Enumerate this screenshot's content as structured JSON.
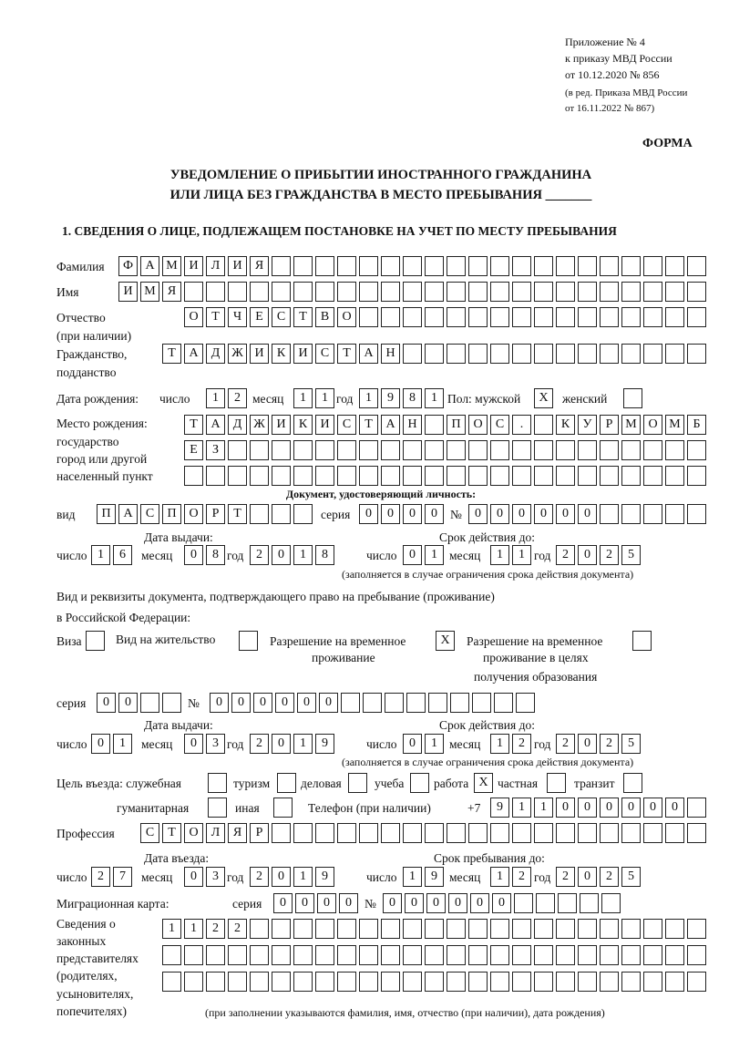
{
  "header": {
    "appendix": "Приложение № 4",
    "order": "к приказу МВД России",
    "order_date": "от 10.12.2020 № 856",
    "edition1": "(в ред. Приказа МВД России",
    "edition2": "от 16.11.2022 № 867)",
    "form_label": "ФОРМА",
    "title1": "УВЕДОМЛЕНИЕ О ПРИБЫТИИ ИНОСТРАННОГО ГРАЖДАНИНА",
    "title2": "ИЛИ ЛИЦА БЕЗ ГРАЖДАНСТВА В МЕСТО ПРЕБЫВАНИЯ _______",
    "section1": "1. СВЕДЕНИЯ О ЛИЦЕ, ПОДЛЕЖАЩЕМ ПОСТАНОВКЕ НА УЧЕТ ПО МЕСТУ ПРЕБЫВАНИЯ"
  },
  "labels": {
    "surname": "Фамилия",
    "name": "Имя",
    "patronymic1": "Отчество",
    "patronymic2": "(при наличии)",
    "citizenship1": "Гражданство,",
    "citizenship2": "подданство",
    "birth_date": "Дата рождения:",
    "day": "число",
    "month": "месяц",
    "year": "год",
    "sex": "Пол: мужской",
    "female": "женский",
    "birthplace1": "Место рождения:",
    "birthplace2": "государство",
    "birthplace3": "город или другой",
    "birthplace4": "населенный пункт",
    "id_doc": "Документ, удостоверяющий личность:",
    "kind": "вид",
    "series": "серия",
    "number": "№",
    "issue_date": "Дата выдачи:",
    "valid_until": "Срок действия до:",
    "validity_note": "(заполняется в случае ограничения срока действия документа)",
    "right_doc1": "Вид и реквизиты документа, подтверждающего право на пребывание (проживание)",
    "right_doc2": "в Российской Федерации:",
    "visa": "Виза",
    "residence": "Вид на жительство",
    "trp1": "Разрешение на временное",
    "trp2": "проживание",
    "trp_edu1": "Разрешение на временное",
    "trp_edu2": "проживание в целях",
    "trp_edu3": "получения образования",
    "purpose": "Цель въезда: служебная",
    "tourism": "туризм",
    "business": "деловая",
    "study": "учеба",
    "work": "работа",
    "private": "частная",
    "transit": "транзит",
    "humanitarian": "гуманитарная",
    "other": "иная",
    "phone": "Телефон (при наличии)",
    "phone_prefix": "+7",
    "profession": "Профессия",
    "entry_date": "Дата въезда:",
    "stay_until": "Срок пребывания до:",
    "migration_card": "Миграционная карта:",
    "reps1": "Сведения о",
    "reps2": "законных",
    "reps3": "представителях",
    "reps4": "(родителях,",
    "reps5": "усыновителях,",
    "reps6": "попечителях)",
    "reps_note": "(при заполнении указываются фамилия, имя, отчество (при наличии), дата рождения)"
  },
  "person": {
    "surname": "ФАМИЛИЯ",
    "name": "ИМЯ",
    "patronymic": "ОТЧЕСТВО",
    "citizenship": "ТАДЖИКИСТАН",
    "birth_day": "12",
    "birth_month": "11",
    "birth_year": "1981",
    "sex_male": "X",
    "sex_female": "",
    "birthplace_row1": "ТАДЖИКИСТАН ПОС. КУРМОМБ",
    "birthplace_row2": "ЕЗ",
    "birthplace_row3": ""
  },
  "id_document": {
    "kind": "ПАСПОРТ",
    "series": "0000",
    "number": "000000",
    "issue_day": "16",
    "issue_month": "08",
    "issue_year": "2018",
    "valid_day": "01",
    "valid_month": "11",
    "valid_year": "2025"
  },
  "right_document": {
    "visa": "",
    "residence_permit": "",
    "temporary_residence": "X",
    "temporary_residence_education": "",
    "series": "00",
    "number": "000000",
    "issue_day": "01",
    "issue_month": "03",
    "issue_year": "2019",
    "valid_day": "01",
    "valid_month": "12",
    "valid_year": "2025"
  },
  "purpose": {
    "official": "",
    "tourism": "",
    "business": "",
    "study": "",
    "work": "X",
    "private": "",
    "transit": "",
    "humanitarian": "",
    "other": ""
  },
  "phone": "911000000",
  "profession": "СТОЛЯР",
  "entry": {
    "day": "27",
    "month": "03",
    "year": "2019",
    "stay_day": "19",
    "stay_month": "12",
    "stay_year": "2025"
  },
  "migration_card": {
    "series": "0000",
    "number": "000000"
  },
  "representatives": {
    "row1": "1122",
    "row2": "",
    "row3": ""
  }
}
